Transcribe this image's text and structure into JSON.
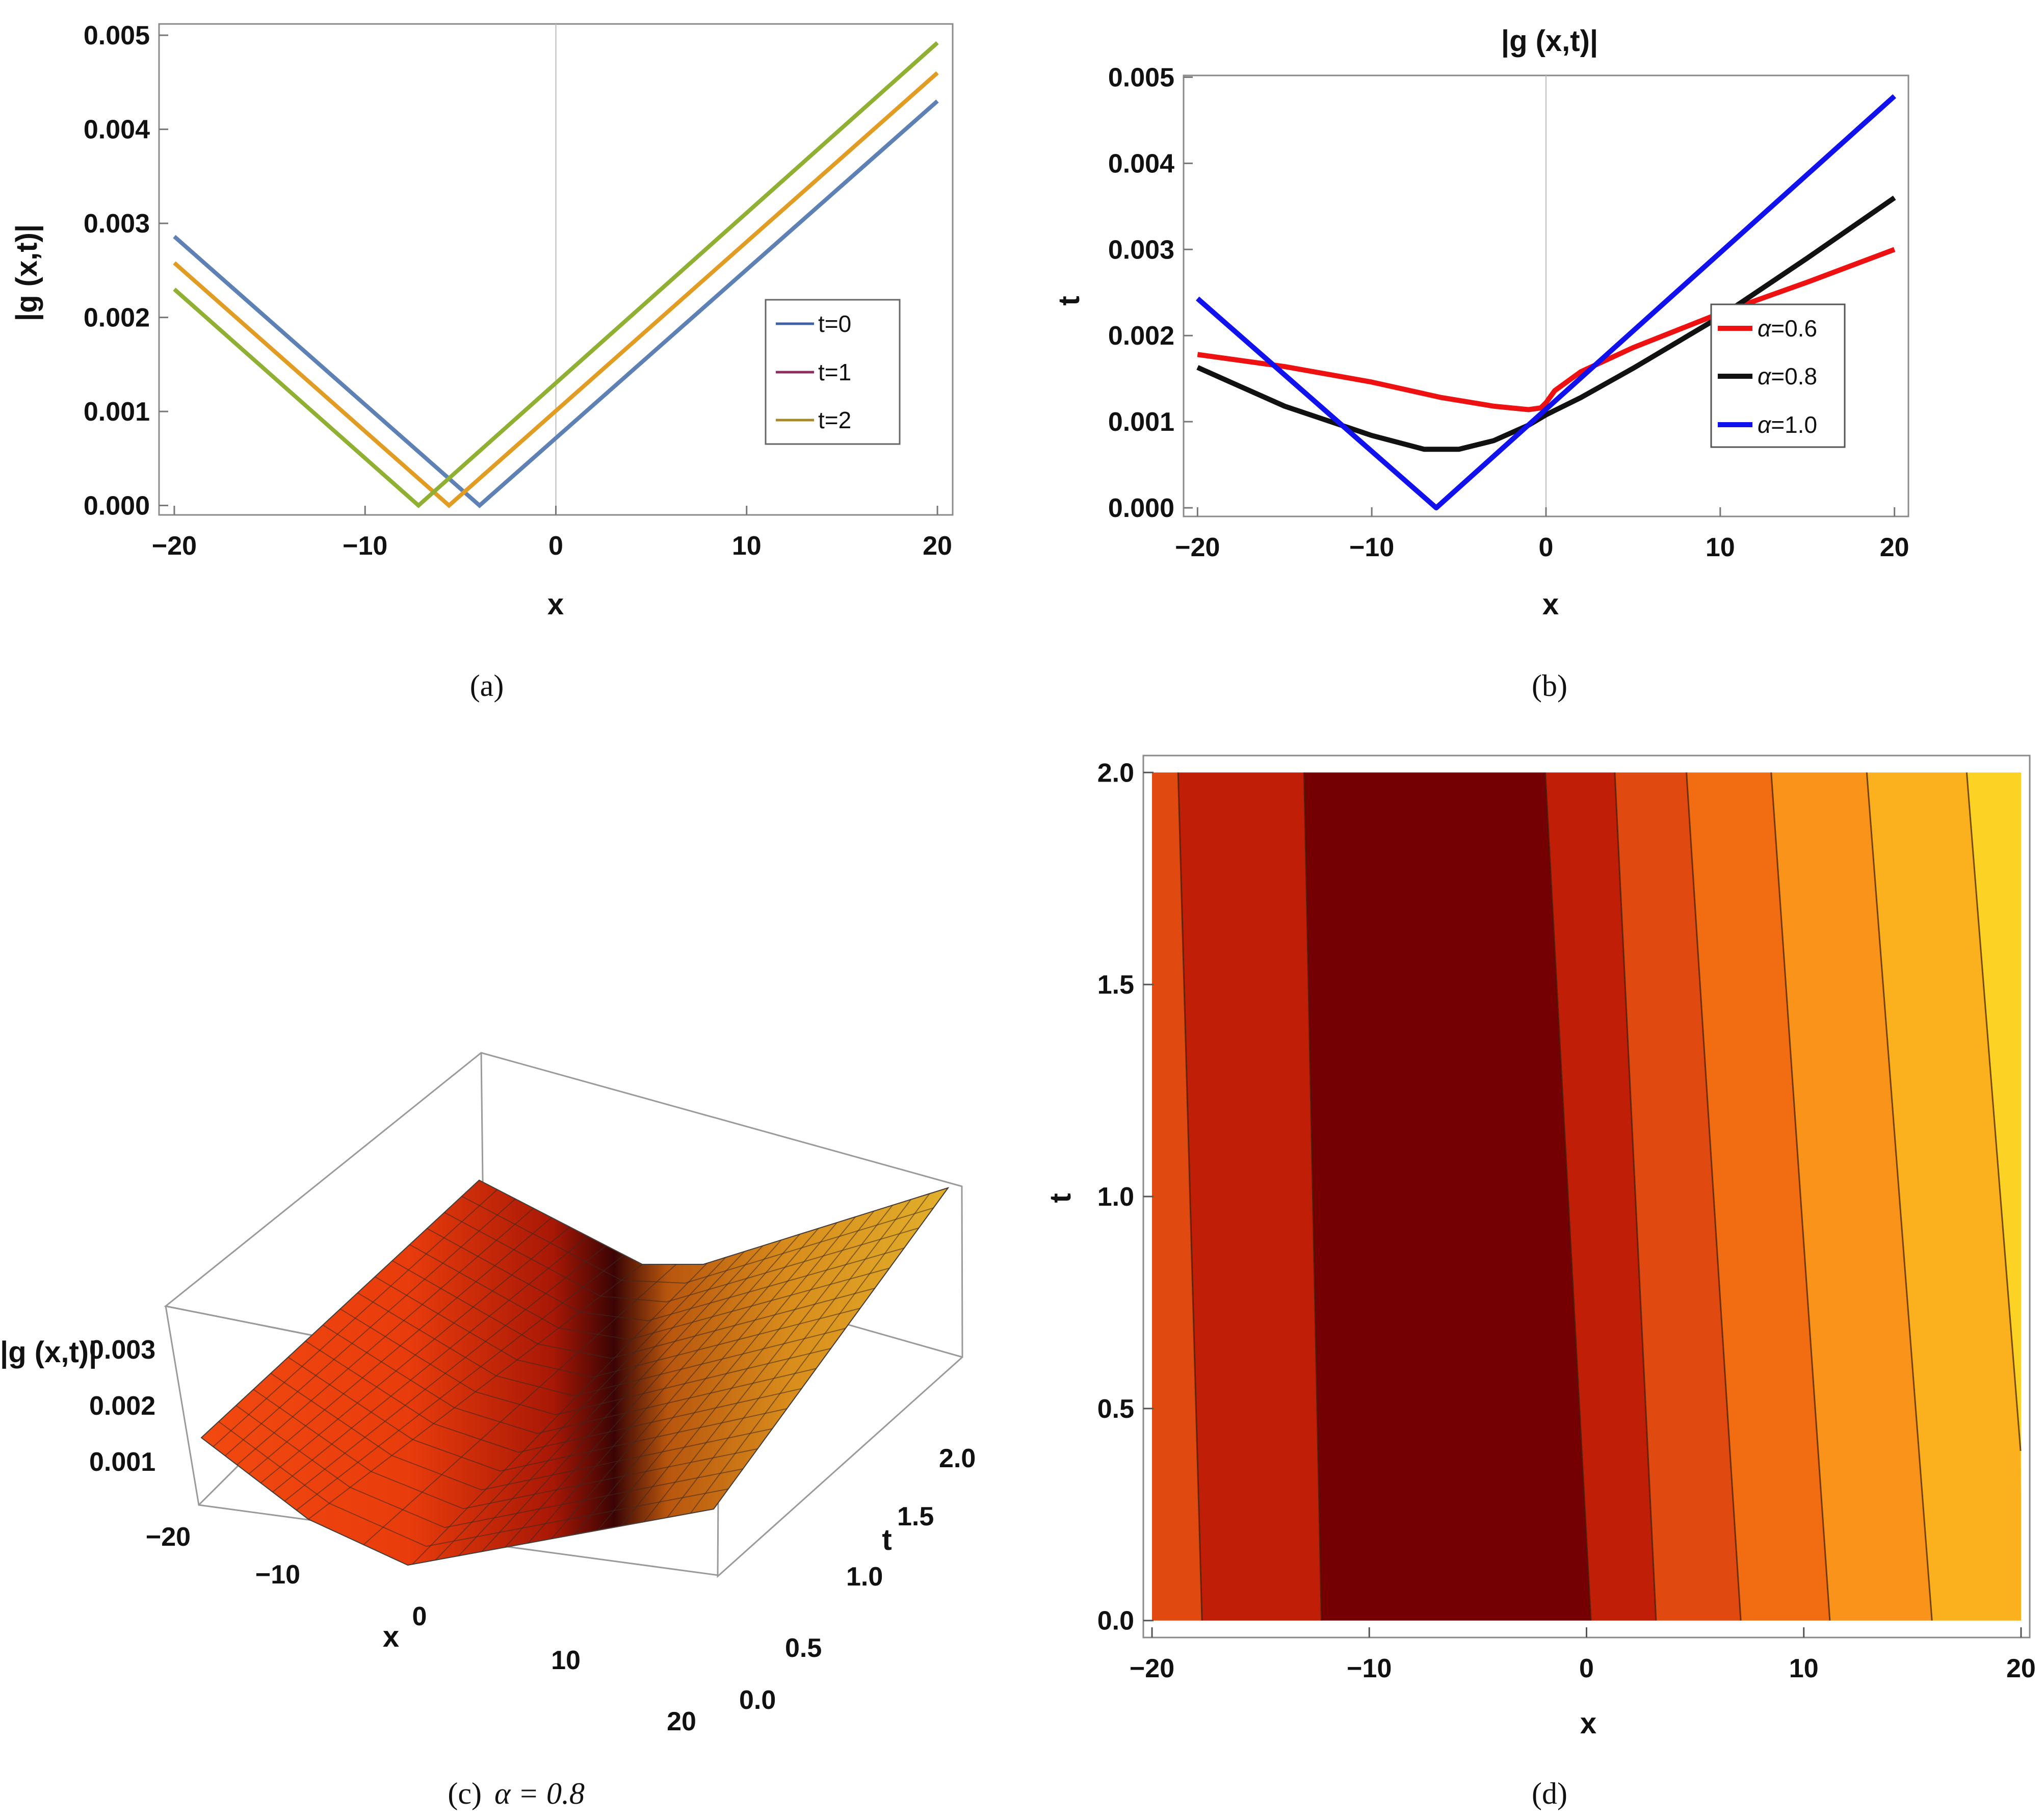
{
  "chart_data": [
    {
      "id": "a",
      "type": "line",
      "caption": "(a)",
      "xlabel": "x",
      "ylabel": "|g (x,t)|",
      "xlim": [
        -20.8,
        20.8
      ],
      "ylim": [
        -0.0001,
        0.00512
      ],
      "xticks": [
        -20,
        -10,
        0,
        10,
        20
      ],
      "xtick_labels": [
        "−20",
        "−10",
        "0",
        "10",
        "20"
      ],
      "yticks": [
        0.0,
        0.001,
        0.002,
        0.003,
        0.004,
        0.005
      ],
      "ytick_labels": [
        "0.000",
        "0.001",
        "0.002",
        "0.003",
        "0.004",
        "0.005"
      ],
      "legend": [
        {
          "label": "t=0",
          "color": "#3f5fa8"
        },
        {
          "label": "t=1",
          "color": "#8e2c5a"
        },
        {
          "label": "t=2",
          "color": "#a68a2a"
        }
      ],
      "series": [
        {
          "name": "t=0",
          "color": "#5e81b5",
          "x": [
            -20,
            -4,
            20
          ],
          "y": [
            0.00286,
            0.0,
            0.0043
          ]
        },
        {
          "name": "t=1",
          "color": "#e19c24",
          "x": [
            -20,
            -5.6,
            20
          ],
          "y": [
            0.00258,
            0.0,
            0.0046
          ]
        },
        {
          "name": "t=2",
          "color": "#8fb032",
          "x": [
            -20,
            -7.2,
            20
          ],
          "y": [
            0.0023,
            0.0,
            0.00492
          ]
        }
      ]
    },
    {
      "id": "b",
      "type": "line",
      "caption": "(b)",
      "title": "|g (x,t)|",
      "xlabel": "x",
      "ylabel": "t",
      "xlim": [
        -20.8,
        20.8
      ],
      "ylim": [
        -0.0001,
        0.00502
      ],
      "xticks": [
        -20,
        -10,
        0,
        10,
        20
      ],
      "xtick_labels": [
        "−20",
        "−10",
        "0",
        "10",
        "20"
      ],
      "yticks": [
        0.0,
        0.001,
        0.002,
        0.003,
        0.004,
        0.005
      ],
      "ytick_labels": [
        "0.000",
        "0.001",
        "0.002",
        "0.003",
        "0.004",
        "0.005"
      ],
      "legend_alpha_symbol": "α",
      "series": [
        {
          "name": "α=0.6",
          "alpha_value": "=0.6",
          "color": "#ee1111",
          "x": [
            -20,
            -15,
            -10,
            -6,
            -3,
            -1,
            -0.3,
            0,
            0.5,
            2,
            5,
            10,
            15,
            20
          ],
          "y": [
            0.00178,
            0.00164,
            0.00146,
            0.00128,
            0.00118,
            0.00114,
            0.00116,
            0.00122,
            0.00136,
            0.00158,
            0.00186,
            0.00226,
            0.00262,
            0.003
          ]
        },
        {
          "name": "α=0.8",
          "alpha_value": "=0.8",
          "color": "#111111",
          "x": [
            -20,
            -15,
            -10,
            -7,
            -5,
            -3,
            -1,
            0,
            2,
            5,
            10,
            15,
            20
          ],
          "y": [
            0.00163,
            0.00118,
            0.00084,
            0.00068,
            0.00068,
            0.00078,
            0.00096,
            0.00108,
            0.00128,
            0.00162,
            0.00222,
            0.0029,
            0.0036
          ]
        },
        {
          "name": "α=1.0",
          "alpha_value": "=1.0",
          "color": "#1111ee",
          "x": [
            -20,
            -6.3,
            20
          ],
          "y": [
            0.00243,
            0.0,
            0.00478
          ]
        }
      ]
    },
    {
      "id": "c",
      "type": "surface",
      "caption": "(c)",
      "caption_math": "α = 0.8",
      "xlabel": "x",
      "ylabel": "t",
      "zlabel": "|g (x,t)|",
      "x_ticks": [
        -20,
        -10,
        0,
        10,
        20
      ],
      "x_tick_labels": [
        "−20",
        "−10",
        "0",
        "10",
        "20"
      ],
      "t_ticks": [
        0.0,
        0.5,
        1.0,
        1.5,
        2.0
      ],
      "t_tick_labels": [
        "0.0",
        "0.5",
        "1.0",
        "1.5",
        "2.0"
      ],
      "z_ticks": [
        0.001,
        0.002,
        0.003
      ],
      "z_tick_labels": [
        "0.001",
        "0.002",
        "0.003"
      ],
      "x_range": [
        -20,
        20
      ],
      "t_range": [
        0,
        2
      ]
    },
    {
      "id": "d",
      "type": "contour",
      "caption": "(d)",
      "xlabel": "x",
      "ylabel": "t",
      "xlim": [
        -20.4,
        20.4
      ],
      "ylim": [
        -0.04,
        2.04
      ],
      "xticks": [
        -20,
        -10,
        0,
        10,
        20
      ],
      "xtick_labels": [
        "−20",
        "−10",
        "0",
        "10",
        "20"
      ],
      "yticks": [
        0.0,
        0.5,
        1.0,
        1.5,
        2.0
      ],
      "ytick_labels": [
        "0.0",
        "0.5",
        "1.0",
        "1.5",
        "2.0"
      ],
      "band_colors": [
        "#e04a10",
        "#c01e06",
        "#740004",
        "#c01e06",
        "#e04a10",
        "#f26d12",
        "#f9931a",
        "#fbb01e",
        "#fcd324"
      ],
      "contour_x_at_t0": [
        -17.7,
        -12.2,
        0.2,
        3.2,
        7.1,
        11.2,
        15.9
      ],
      "contour_x_at_t2": [
        -18.8,
        -13.0,
        -1.9,
        1.3,
        4.6,
        8.5,
        12.9,
        17.5
      ]
    }
  ]
}
